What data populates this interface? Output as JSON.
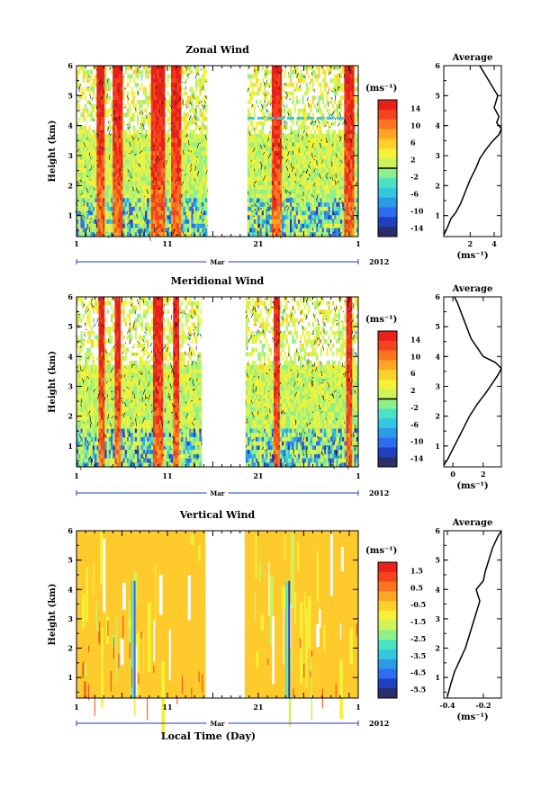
{
  "colors": {
    "palette": [
      "#2a2f6b",
      "#1f3fbf",
      "#2e6cf2",
      "#2b9be8",
      "#33c8e0",
      "#4be2c4",
      "#8ff08a",
      "#cdf25c",
      "#f4f237",
      "#ffd02a",
      "#ffa524",
      "#ff7420",
      "#f4441e",
      "#e8201a"
    ],
    "vertical_fill": "#ffca2c",
    "gap_fill": "#ffffff",
    "contour": "#000000",
    "cbar_line": "#000000"
  },
  "chart_data": [
    {
      "type": "heatmap",
      "title": "Zonal Wind",
      "ylabel": "Height (km)",
      "xlabel": "",
      "x_ticks": [
        "1",
        "11",
        "21",
        "1"
      ],
      "x_month": "Mar",
      "year": "2012",
      "y_ticks": [
        "1",
        "2",
        "3",
        "4",
        "5",
        "6"
      ],
      "ylim": [
        0.3,
        6.0
      ],
      "xlim": [
        1,
        32
      ],
      "data_gap_days": [
        15.4,
        19.8
      ],
      "unit": "(ms⁻¹)",
      "cbar_ticks": [
        "14",
        "10",
        "6",
        "2",
        "-2",
        "-6",
        "-10",
        "-14"
      ],
      "cbar_range": [
        -16,
        16
      ],
      "average": {
        "title": "Average",
        "xlabel": "(ms⁻¹)",
        "x_ticks": [
          "2",
          "4"
        ],
        "xlim": [
          -0.2,
          4.6
        ],
        "height": [
          0.35,
          0.6,
          0.9,
          1.1,
          1.4,
          1.8,
          2.2,
          2.6,
          2.9,
          3.2,
          3.5,
          3.7,
          3.9,
          4.1,
          4.3,
          4.6,
          5.0,
          5.4,
          5.8,
          6.0
        ],
        "values": [
          -0.2,
          0.1,
          0.4,
          0.8,
          1.2,
          1.6,
          2.0,
          2.5,
          2.8,
          3.3,
          3.9,
          4.4,
          4.6,
          4.2,
          4.4,
          4.0,
          4.3,
          3.7,
          3.1,
          2.8
        ]
      }
    },
    {
      "type": "heatmap",
      "title": "Meridional Wind",
      "ylabel": "Height (km)",
      "xlabel": "",
      "x_ticks": [
        "1",
        "11",
        "21",
        "1"
      ],
      "x_month": "Mar",
      "year": "2012",
      "y_ticks": [
        "1",
        "2",
        "3",
        "4",
        "5",
        "6"
      ],
      "ylim": [
        0.3,
        6.0
      ],
      "xlim": [
        1,
        32
      ],
      "data_gap_days": [
        14.8,
        19.6
      ],
      "unit": "(ms⁻¹)",
      "cbar_ticks": [
        "14",
        "10",
        "6",
        "2",
        "-2",
        "-6",
        "-10",
        "-14"
      ],
      "cbar_range": [
        -16,
        16
      ],
      "average": {
        "title": "Average",
        "xlabel": "(ms⁻¹)",
        "x_ticks": [
          "0",
          "2"
        ],
        "xlim": [
          -0.6,
          3.2
        ],
        "height": [
          0.35,
          0.6,
          0.9,
          1.2,
          1.6,
          2.0,
          2.4,
          2.8,
          3.1,
          3.4,
          3.6,
          3.8,
          4.0,
          4.3,
          4.6,
          5.0,
          5.4,
          5.8,
          6.0
        ],
        "values": [
          -0.6,
          -0.3,
          0.0,
          0.3,
          0.7,
          1.1,
          1.6,
          2.2,
          2.6,
          3.0,
          3.2,
          2.8,
          2.0,
          1.6,
          1.2,
          0.9,
          0.6,
          0.3,
          0.1
        ]
      }
    },
    {
      "type": "heatmap",
      "title": "Vertical Wind",
      "ylabel": "Height (km)",
      "xlabel": "Local Time (Day)",
      "x_ticks": [
        "1",
        "11",
        "21",
        "1"
      ],
      "x_month": "Mar",
      "year": "2012",
      "y_ticks": [
        "1",
        "2",
        "3",
        "4",
        "5",
        "6"
      ],
      "ylim": [
        0.3,
        6.0
      ],
      "xlim": [
        1,
        32
      ],
      "data_gap_days": [
        15.2,
        19.5
      ],
      "unit": "(ms⁻¹)",
      "cbar_ticks": [
        "1.5",
        "0.5",
        "-0.5",
        "-1.5",
        "-2.5",
        "-3.5",
        "-4.5",
        "-5.5"
      ],
      "cbar_range": [
        -6,
        2
      ],
      "average": {
        "title": "Average",
        "xlabel": "(ms⁻¹)",
        "x_ticks": [
          "-0.4",
          "-0.2"
        ],
        "xlim": [
          -0.42,
          -0.1
        ],
        "height": [
          0.35,
          0.8,
          1.2,
          1.6,
          2.0,
          2.4,
          2.8,
          3.2,
          3.6,
          4.0,
          4.3,
          4.6,
          5.0,
          5.4,
          5.8,
          6.0
        ],
        "values": [
          -0.4,
          -0.38,
          -0.36,
          -0.33,
          -0.3,
          -0.28,
          -0.26,
          -0.24,
          -0.22,
          -0.24,
          -0.2,
          -0.19,
          -0.17,
          -0.15,
          -0.12,
          -0.1
        ]
      }
    }
  ]
}
